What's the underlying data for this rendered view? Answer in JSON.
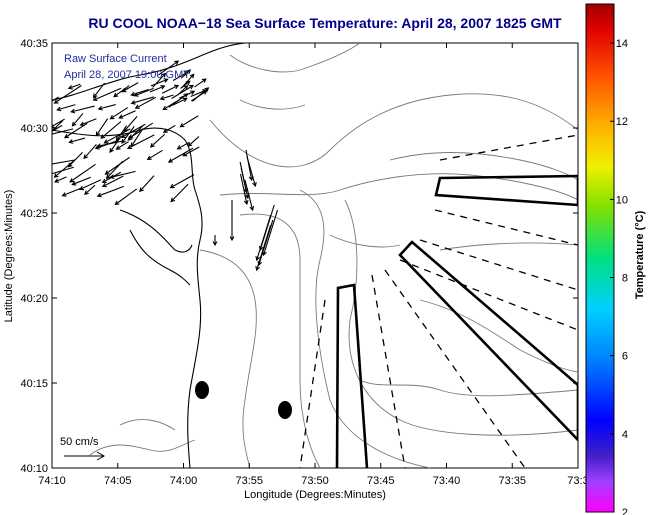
{
  "title": "RU COOL  NOAA−18  Sea Surface Temperature:  April 28, 2007 1825 GMT",
  "annotation": {
    "line1": "Raw Surface Current",
    "line2": "April 28, 2007 19:00 GMT"
  },
  "scale_label": "50 cm/s",
  "axes": {
    "xlabel": "Longitude (Degrees:Minutes)",
    "ylabel": "Latitude (Degrees:Minutes)",
    "xticks": [
      "74:10",
      "74:05",
      "74:00",
      "73:55",
      "73:50",
      "73:45",
      "73:40",
      "73:35",
      "73:3"
    ],
    "yticks": [
      "40:35",
      "40:30",
      "40:25",
      "40:20",
      "40:15",
      "40:10"
    ]
  },
  "colorbar": {
    "label": "Temperature (°C)",
    "ticks": [
      "14",
      "12",
      "10",
      "8",
      "6",
      "4",
      "2"
    ],
    "range": [
      2,
      15
    ]
  },
  "colors": {
    "title": "#00008b",
    "annotation": "#1f2fa0",
    "contour": "#7a7a7a",
    "coast": "#000000"
  }
}
